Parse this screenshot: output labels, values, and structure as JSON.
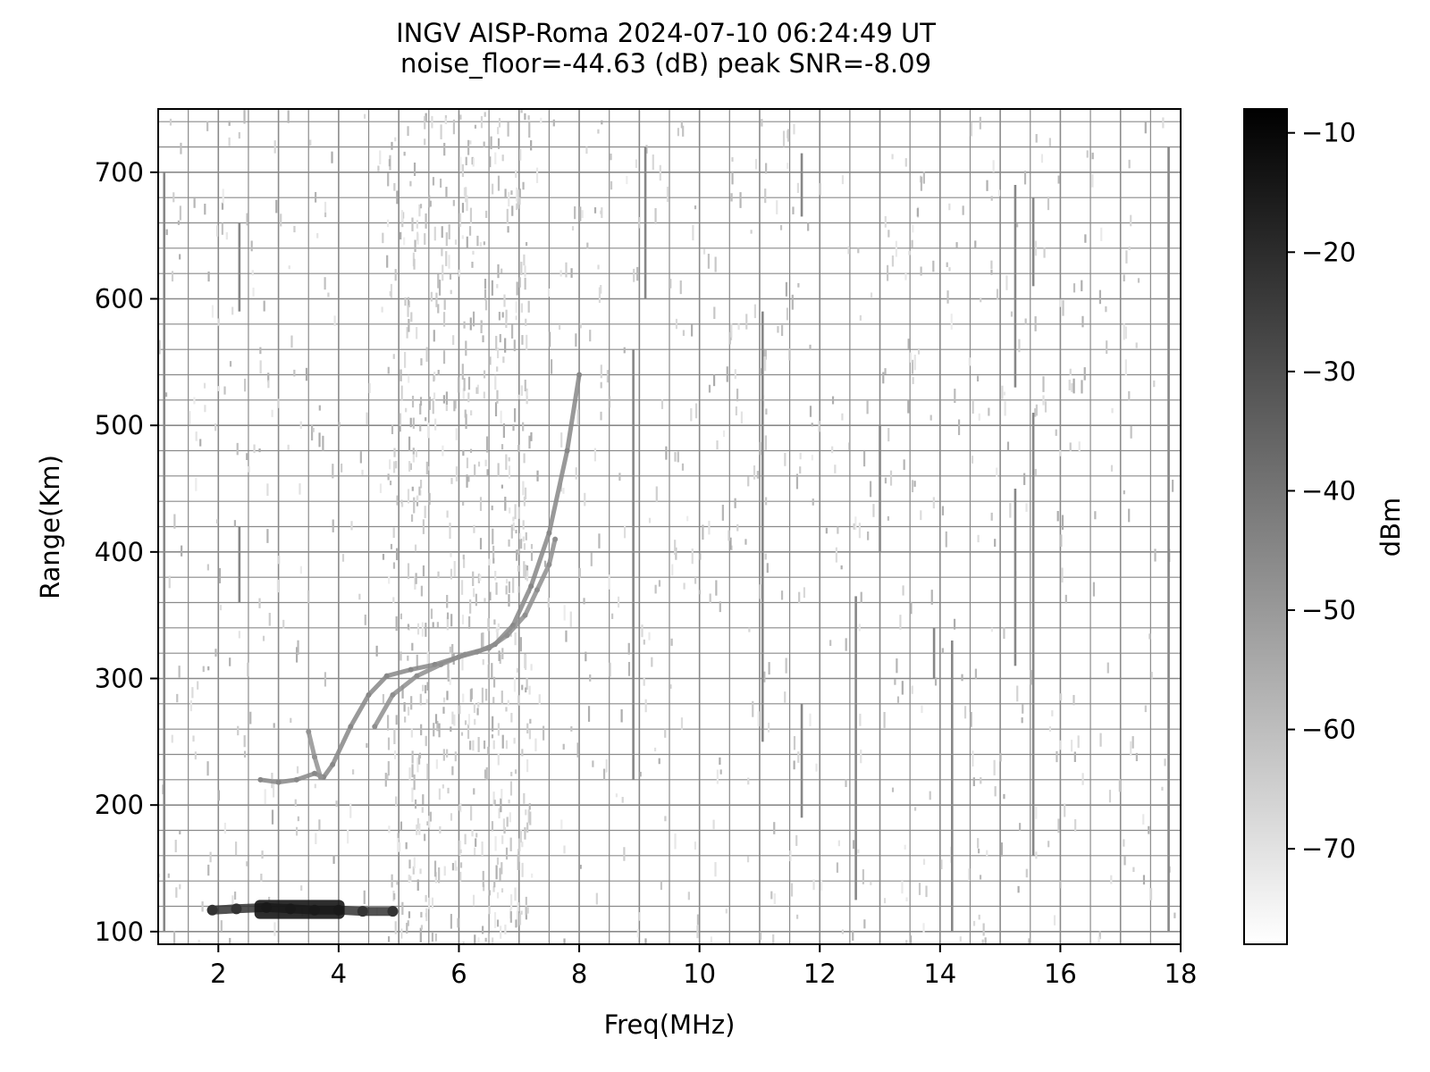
{
  "chart_data": {
    "type": "heatmap",
    "title": "INGV AISP-Roma 2024-07-10 06:24:49 UT",
    "subtitle": "noise_floor=-44.63 (dB) peak SNR=-8.09",
    "xlabel": "Freq(MHz)",
    "ylabel": "Range(Km)",
    "xlim": [
      1,
      18
    ],
    "ylim": [
      90,
      750
    ],
    "x_ticks": [
      2,
      4,
      6,
      8,
      10,
      12,
      14,
      16,
      18
    ],
    "y_ticks": [
      100,
      200,
      300,
      400,
      500,
      600,
      700
    ],
    "grid": true,
    "colorbar": {
      "label": "dBm",
      "range": [
        -78,
        -8
      ],
      "ticks": [
        -10,
        -20,
        -30,
        -40,
        -50,
        -60,
        -70
      ],
      "colormap": "gray_r",
      "color_low": "#ffffff",
      "color_high": "#000000"
    },
    "traces": [
      {
        "description": "E layer echo",
        "freq": [
          1.9,
          2.3,
          2.8,
          3.2,
          3.6,
          4.0,
          4.4,
          4.9
        ],
        "range": [
          117,
          118,
          119,
          118,
          117,
          117,
          116,
          116
        ],
        "dbm": -22
      },
      {
        "description": "F1 ordinary trace",
        "freq": [
          2.7,
          3.0,
          3.3,
          3.6,
          3.75,
          3.9,
          4.2,
          4.5,
          4.8,
          5.2,
          5.6,
          6.0,
          6.3,
          6.6,
          6.9,
          7.2,
          7.5,
          7.8,
          8.0
        ],
        "range": [
          220,
          218,
          220,
          225,
          222,
          232,
          262,
          287,
          302,
          307,
          311,
          317,
          321,
          327,
          342,
          373,
          415,
          480,
          540
        ],
        "dbm": -45
      },
      {
        "description": "F2 extraordinary trace",
        "freq": [
          4.6,
          4.9,
          5.3,
          5.7,
          6.1,
          6.5,
          6.8,
          7.1,
          7.3,
          7.5,
          7.6
        ],
        "range": [
          262,
          287,
          302,
          311,
          319,
          324,
          334,
          350,
          370,
          390,
          410
        ],
        "dbm": -47
      },
      {
        "description": "Cusp near F1",
        "freq": [
          3.5,
          3.6,
          3.7
        ],
        "range": [
          258,
          238,
          222
        ],
        "dbm": -48
      }
    ],
    "interference_columns": [
      {
        "freq": 2.35,
        "range": [
          590,
          660
        ]
      },
      {
        "freq": 2.35,
        "range": [
          360,
          420
        ]
      },
      {
        "freq": 8.9,
        "range": [
          220,
          560
        ]
      },
      {
        "freq": 9.1,
        "range": [
          600,
          720
        ]
      },
      {
        "freq": 11.05,
        "range": [
          250,
          590
        ]
      },
      {
        "freq": 11.7,
        "range": [
          190,
          280
        ]
      },
      {
        "freq": 11.7,
        "range": [
          665,
          715
        ]
      },
      {
        "freq": 12.6,
        "range": [
          125,
          365
        ]
      },
      {
        "freq": 13.0,
        "range": [
          400,
          500
        ]
      },
      {
        "freq": 13.9,
        "range": [
          300,
          340
        ]
      },
      {
        "freq": 14.2,
        "range": [
          100,
          330
        ]
      },
      {
        "freq": 15.25,
        "range": [
          310,
          450
        ]
      },
      {
        "freq": 15.25,
        "range": [
          530,
          690
        ]
      },
      {
        "freq": 15.55,
        "range": [
          160,
          510
        ]
      },
      {
        "freq": 15.55,
        "range": [
          610,
          680
        ]
      },
      {
        "freq": 17.8,
        "range": [
          100,
          720
        ]
      },
      {
        "freq": 1.1,
        "range": [
          100,
          700
        ]
      }
    ]
  }
}
